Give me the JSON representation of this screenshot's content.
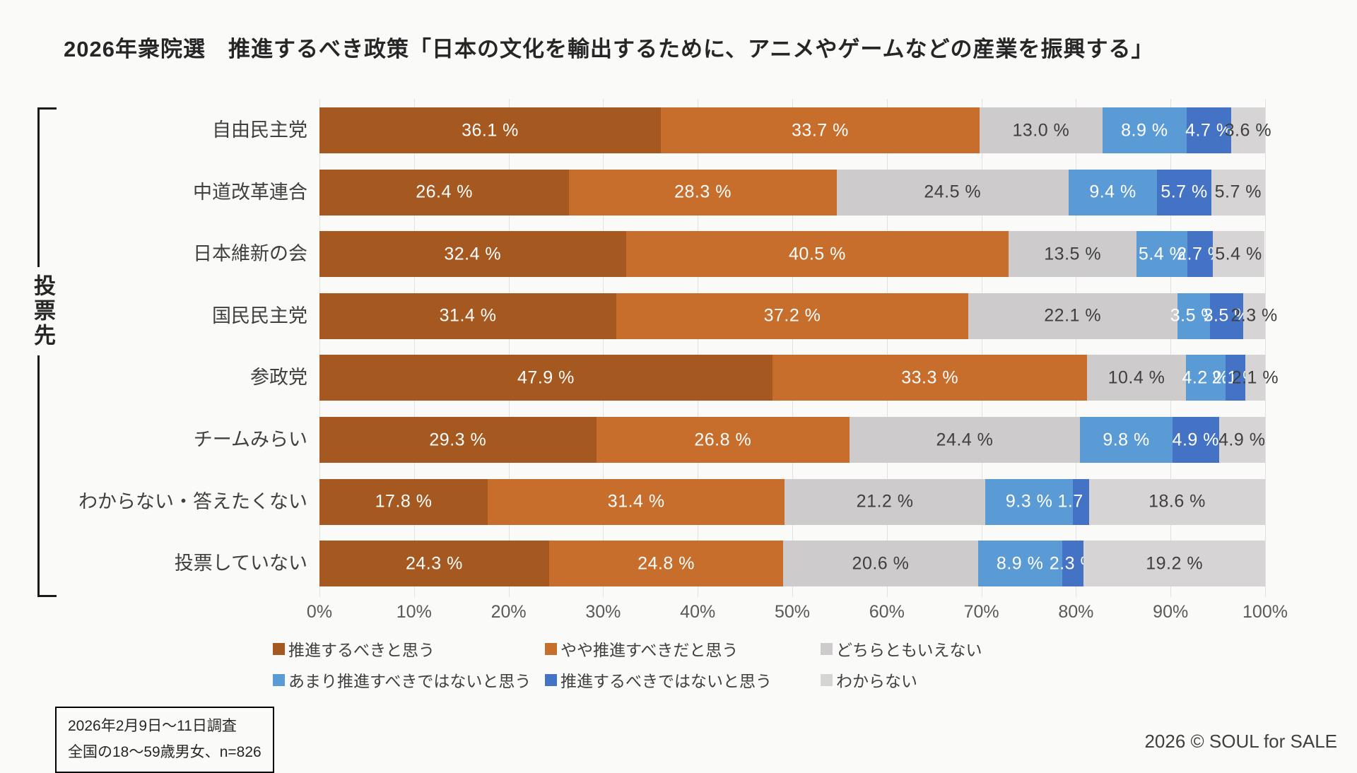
{
  "title": "2026年衆院選　推進するべき政策「日本の文化を輸出するために、アニメやゲームなどの産業を振興する」",
  "group_label": "投票先",
  "chart_data": {
    "type": "bar",
    "stacked": true,
    "orientation": "horizontal",
    "title": "2026年衆院選　推進するべき政策「日本の文化を輸出するために、アニメやゲームなどの産業を振興する」",
    "categories": [
      "自由民主党",
      "中道改革連合",
      "日本維新の会",
      "国民民主党",
      "参政党",
      "チームみらい",
      "わからない・答えたくない",
      "投票していない"
    ],
    "series": [
      {
        "name": "推進するべきと思う",
        "color": "#A5581F",
        "label_color": "#FFFFFF",
        "values": [
          36.1,
          26.4,
          32.4,
          31.4,
          47.9,
          29.3,
          17.8,
          24.3
        ]
      },
      {
        "name": "やや推進すべきだと思う",
        "color": "#C86E2D",
        "label_color": "#FFFFFF",
        "values": [
          33.7,
          28.3,
          40.5,
          37.2,
          33.3,
          26.8,
          31.4,
          24.8
        ]
      },
      {
        "name": "どちらともいえない",
        "color": "#CDCBCB",
        "label_color": "#3F3F3F",
        "values": [
          13.0,
          24.5,
          13.5,
          22.1,
          10.4,
          24.4,
          21.2,
          20.6
        ]
      },
      {
        "name": "あまり推進すべきではないと思う",
        "color": "#5B9BD5",
        "label_color": "#FFFFFF",
        "values": [
          8.9,
          9.4,
          5.4,
          3.5,
          4.2,
          9.8,
          9.3,
          8.9
        ]
      },
      {
        "name": "推進するべきではないと思う",
        "color": "#4472C4",
        "label_color": "#FFFFFF",
        "values": [
          4.7,
          5.7,
          2.7,
          3.5,
          2.1,
          4.9,
          1.7,
          2.3
        ]
      },
      {
        "name": "わからない",
        "color": "#D6D4D4",
        "label_color": "#3F3F3F",
        "values": [
          3.6,
          5.7,
          5.4,
          2.3,
          2.1,
          4.9,
          18.6,
          19.2
        ]
      }
    ],
    "x_ticks": [
      "0%",
      "10%",
      "20%",
      "30%",
      "40%",
      "50%",
      "60%",
      "70%",
      "80%",
      "90%",
      "100%"
    ],
    "xlim": [
      0,
      100
    ],
    "value_suffix": " %",
    "grid": true,
    "legend_position": "bottom"
  },
  "footnote": {
    "line1": "2026年2月9日〜11日調査",
    "line2": "全国の18〜59歳男女、n=826"
  },
  "credit": "2026 © SOUL for SALE"
}
